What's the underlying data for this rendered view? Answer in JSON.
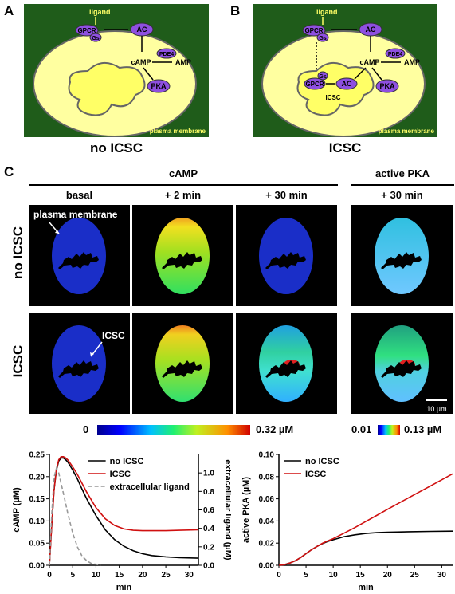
{
  "panels": {
    "A": {
      "letter": "A",
      "caption": "no ICSC"
    },
    "B": {
      "letter": "B",
      "caption": "ICSC"
    },
    "C": {
      "letter": "C"
    }
  },
  "schematic": {
    "ligand": "ligand",
    "gpcr": "GPCR",
    "gs": "Gs",
    "ac": "AC",
    "pde4": "PDE4",
    "camp": "cAMP",
    "amp": "AMP",
    "pka": "PKA",
    "icsc": "ICSC",
    "plasma_membrane": "plasma membrane"
  },
  "grid": {
    "group_camp": "cAMP",
    "group_pka": "active PKA",
    "col_basal": "basal",
    "col_2min": "+ 2 min",
    "col_30min": "+ 30 min",
    "col_pka_30min": "+ 30 min",
    "row_no_icsc": "no ICSC",
    "row_icsc": "ICSC",
    "annot_pm": "plasma membrane",
    "annot_icsc": "ICSC",
    "scale_bar": "10 µm"
  },
  "colorbars": {
    "camp": {
      "min_label": "0",
      "max_label": "0.32 µM"
    },
    "pka": {
      "min_label": "0.01",
      "max_label": "0.13 µM"
    }
  },
  "colors": {
    "membrane_green": "#1f5c1a",
    "cytosol": "#ffffa0",
    "icsc_fill": "#ffff66",
    "protein": "#8e4fe0",
    "no_icsc": "#000000",
    "icsc": "#d01010",
    "ligand": "#999999"
  },
  "chart_data": [
    {
      "type": "line",
      "xlabel": "min",
      "ylabel": "cAMP (µM)",
      "y2label": "extracellular ligand (µM)",
      "xlim": [
        0,
        32
      ],
      "ylim": [
        0,
        0.25
      ],
      "y2lim": [
        0,
        1.2
      ],
      "xticks": [
        0,
        5,
        10,
        15,
        20,
        25,
        30
      ],
      "yticks": [
        "0.00",
        "0.05",
        "0.10",
        "0.15",
        "0.20",
        "0.25"
      ],
      "y2ticks": [
        "0.0",
        "0.2",
        "0.4",
        "0.6",
        "0.8",
        "1.0"
      ],
      "legend_position": "top-right",
      "series": [
        {
          "name": "no ICSC",
          "axis": "left",
          "x": [
            0,
            0.5,
            1,
            1.5,
            2,
            2.5,
            3,
            3.5,
            4,
            5,
            6,
            7,
            8,
            10,
            12,
            14,
            16,
            18,
            20,
            22,
            25,
            28,
            32
          ],
          "y": [
            0,
            0.09,
            0.17,
            0.215,
            0.235,
            0.242,
            0.242,
            0.238,
            0.232,
            0.215,
            0.195,
            0.172,
            0.15,
            0.112,
            0.08,
            0.058,
            0.043,
            0.033,
            0.026,
            0.022,
            0.019,
            0.017,
            0.016
          ]
        },
        {
          "name": "ICSC",
          "axis": "left",
          "x": [
            0,
            0.5,
            1,
            1.5,
            2,
            2.5,
            3,
            3.5,
            4,
            5,
            6,
            7,
            8,
            10,
            12,
            14,
            16,
            18,
            20,
            22,
            25,
            28,
            32
          ],
          "y": [
            0,
            0.09,
            0.17,
            0.217,
            0.238,
            0.245,
            0.245,
            0.242,
            0.237,
            0.222,
            0.205,
            0.185,
            0.165,
            0.13,
            0.105,
            0.09,
            0.082,
            0.079,
            0.078,
            0.078,
            0.078,
            0.079,
            0.08
          ]
        },
        {
          "name": "extracellular ligand",
          "axis": "right",
          "x": [
            0,
            0.5,
            1,
            1.5,
            2,
            3,
            4,
            5,
            6,
            7,
            8,
            9,
            10,
            11
          ],
          "y": [
            0,
            0.55,
            0.95,
            1.05,
            1.0,
            0.78,
            0.55,
            0.35,
            0.2,
            0.1,
            0.05,
            0.02,
            0.01,
            0.0
          ]
        }
      ]
    },
    {
      "type": "line",
      "xlabel": "min",
      "ylabel": "active PKA (µM)",
      "xlim": [
        0,
        32
      ],
      "ylim": [
        0,
        0.1
      ],
      "xticks": [
        0,
        5,
        10,
        15,
        20,
        25,
        30
      ],
      "yticks": [
        "0.00",
        "0.02",
        "0.04",
        "0.06",
        "0.08",
        "0.10"
      ],
      "legend_position": "top-left",
      "series": [
        {
          "name": "no ICSC",
          "x": [
            0,
            1,
            2,
            3,
            4,
            5,
            6,
            7,
            8,
            9,
            10,
            12,
            14,
            16,
            18,
            20,
            24,
            28,
            32
          ],
          "y": [
            0,
            0.0005,
            0.002,
            0.004,
            0.007,
            0.0105,
            0.014,
            0.017,
            0.0195,
            0.0215,
            0.023,
            0.0258,
            0.0275,
            0.0287,
            0.0294,
            0.0298,
            0.0303,
            0.0306,
            0.0308
          ]
        },
        {
          "name": "ICSC",
          "x": [
            0,
            1,
            2,
            3,
            4,
            5,
            6,
            7,
            8,
            9,
            10,
            12,
            14,
            16,
            18,
            20,
            24,
            28,
            32
          ],
          "y": [
            0,
            0.0005,
            0.002,
            0.004,
            0.007,
            0.0105,
            0.014,
            0.017,
            0.0198,
            0.022,
            0.024,
            0.029,
            0.034,
            0.0395,
            0.045,
            0.0505,
            0.0612,
            0.0718,
            0.0825
          ]
        }
      ]
    }
  ]
}
